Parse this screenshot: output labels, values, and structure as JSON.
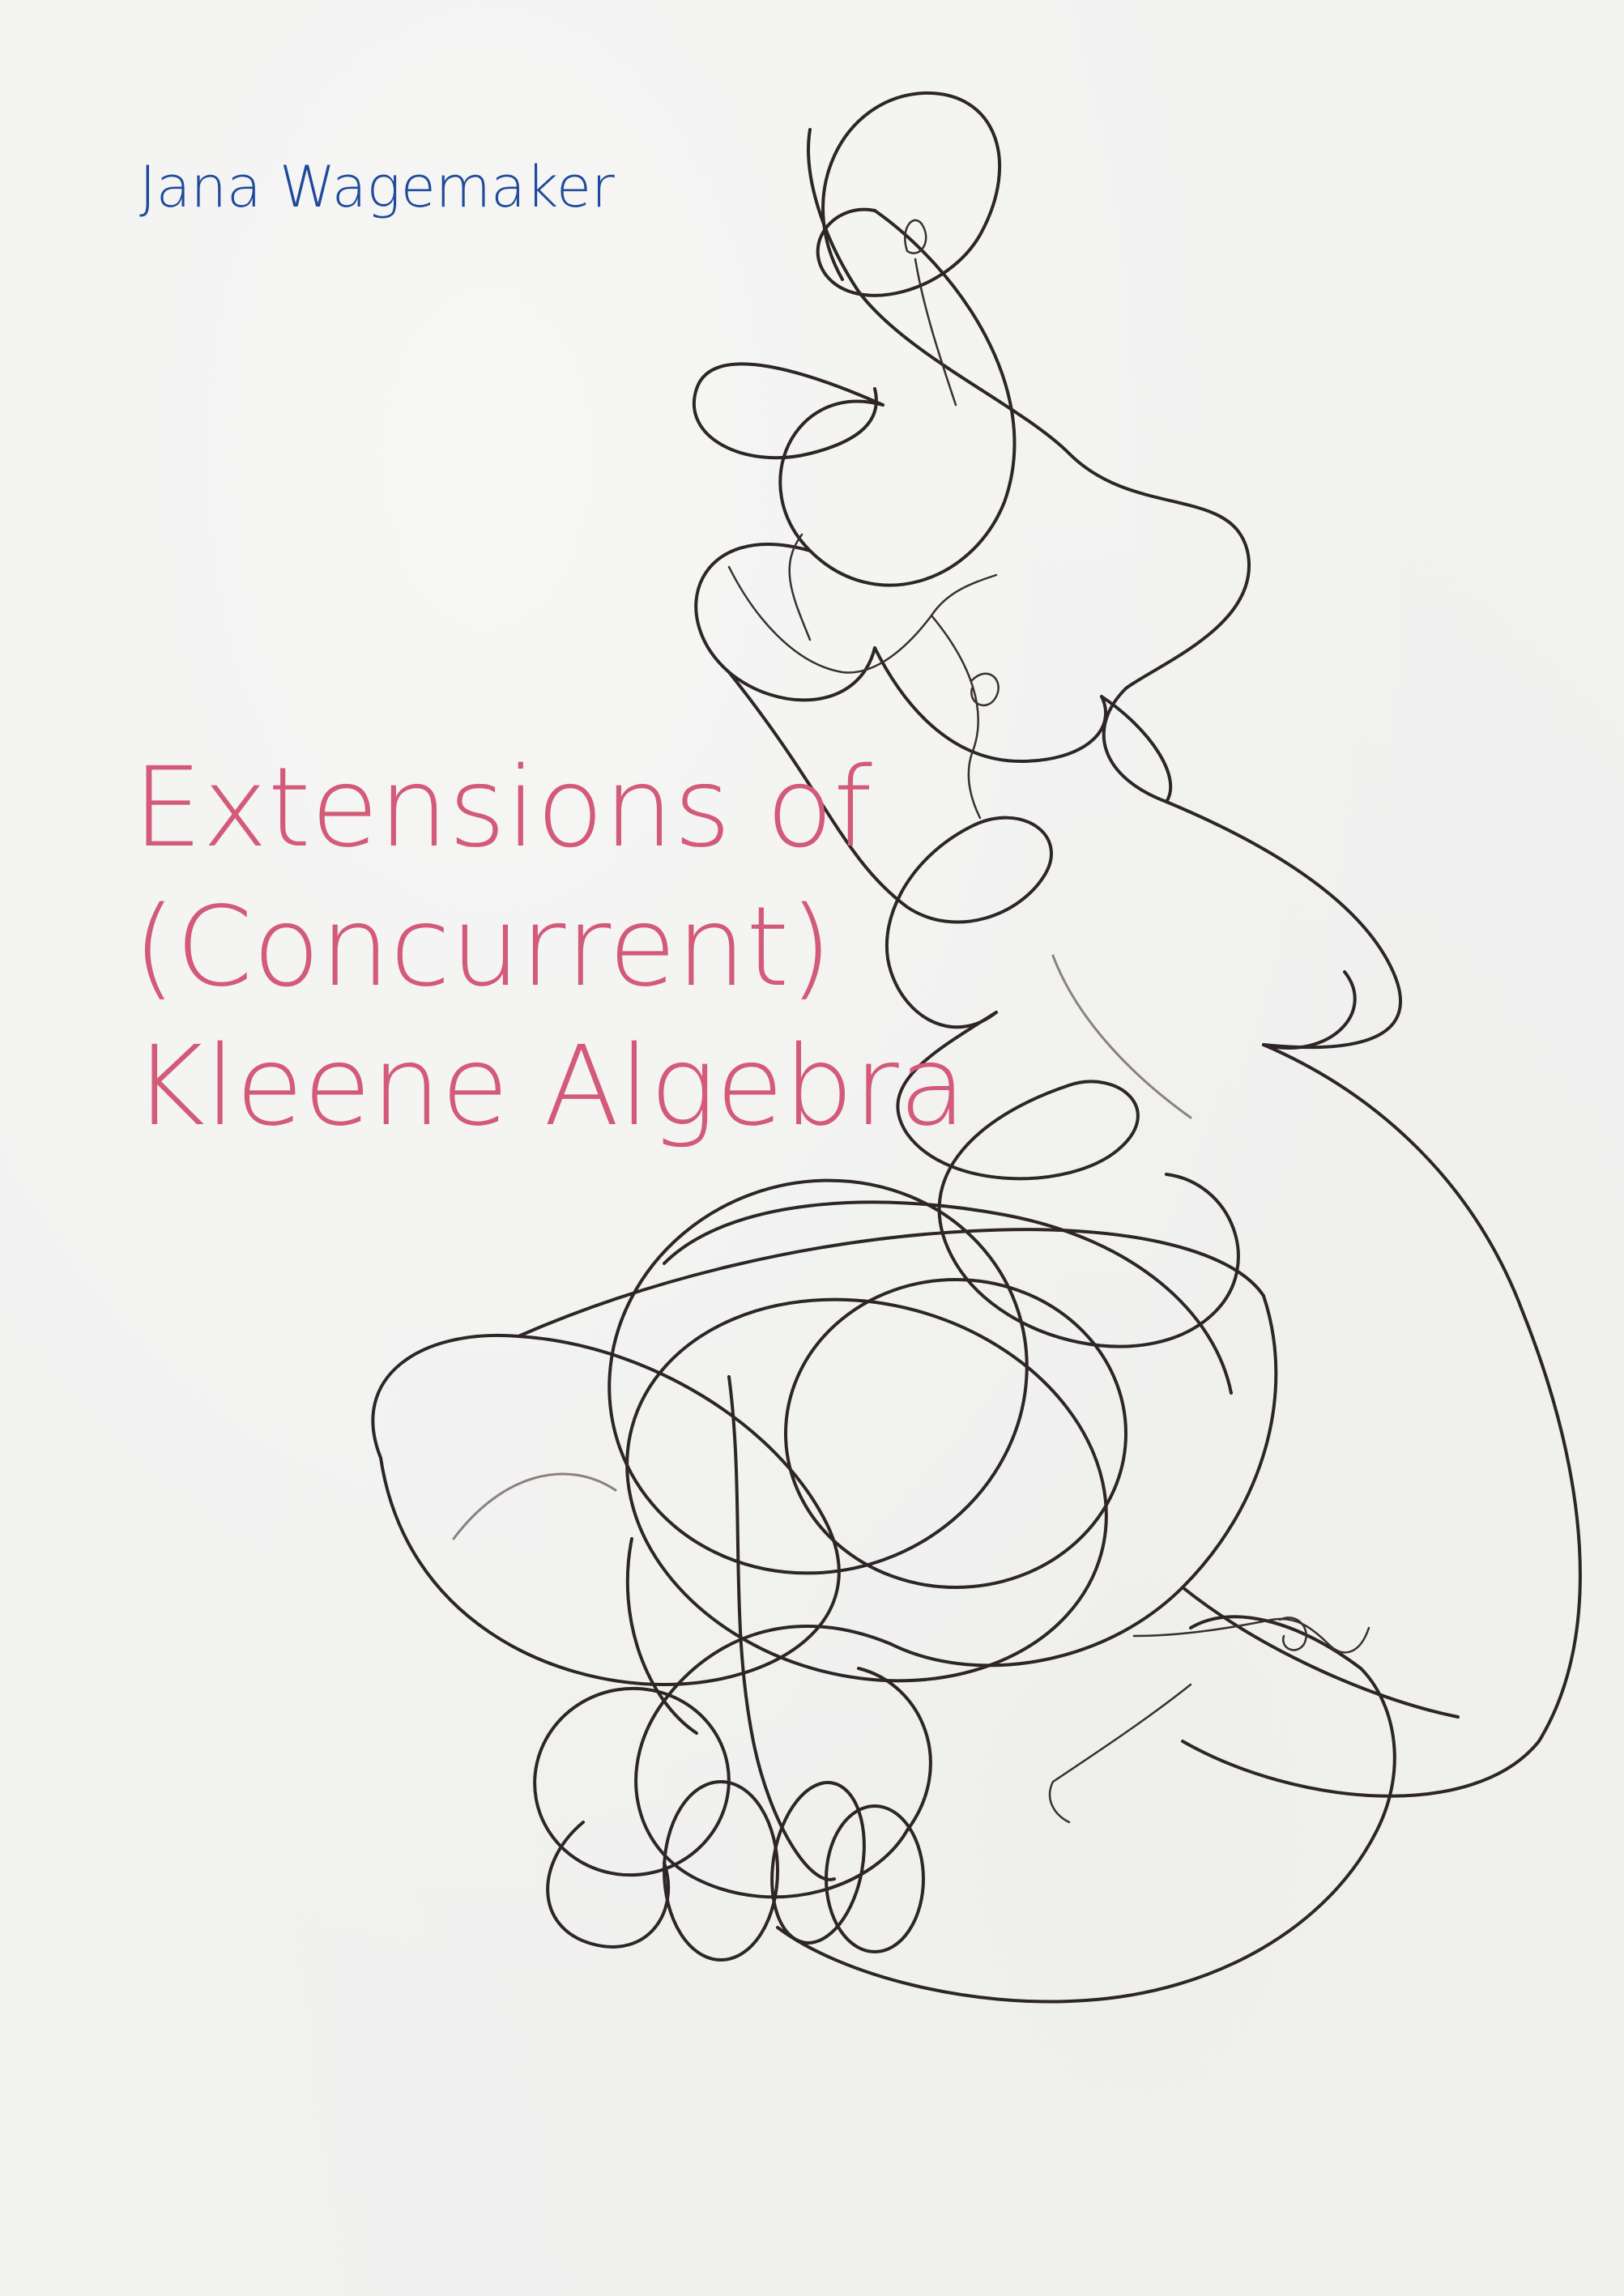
{
  "book": {
    "author": "Jana Wagemaker",
    "title_lines": [
      "Extensions of",
      "(Concurrent)",
      "Kleene Algebra"
    ]
  },
  "colors": {
    "background": "#f1f1f0",
    "author": "#1f4a9c",
    "title": "#d35a78",
    "wire": "#2e2626"
  },
  "artwork": {
    "icon": "wire-sculpture-illustration"
  }
}
